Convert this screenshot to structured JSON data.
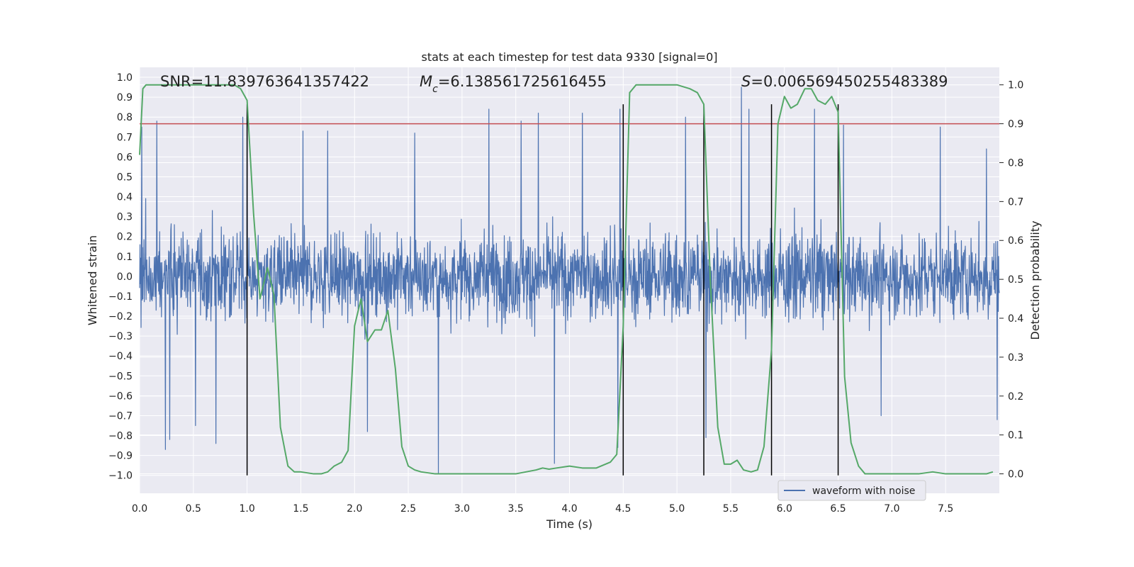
{
  "chart_data": {
    "type": "line",
    "title": "stats at each timestep for test data 9330 [signal=0]",
    "xlabel": "Time (s)",
    "ylabel_left": "Whitened strain",
    "ylabel_right": "Detection probability",
    "xlim": [
      0.0,
      8.0
    ],
    "ylim_left": [
      -1.09,
      1.05
    ],
    "ylim_right": [
      -0.05,
      1.045
    ],
    "x_ticks": [
      "0.0",
      "0.5",
      "1.0",
      "1.5",
      "2.0",
      "2.5",
      "3.0",
      "3.5",
      "4.0",
      "4.5",
      "5.0",
      "5.5",
      "6.0",
      "6.5",
      "7.0",
      "7.5"
    ],
    "y_ticks_left": [
      "1.0",
      "0.9",
      "0.8",
      "0.7",
      "0.6",
      "0.5",
      "0.4",
      "0.3",
      "0.2",
      "0.1",
      "0.0",
      "-0.1",
      "-0.2",
      "-0.3",
      "-0.4",
      "-0.5",
      "-0.6",
      "-0.7",
      "-0.8",
      "-0.9",
      "-1.0"
    ],
    "y_ticks_right": [
      "1.0",
      "0.9",
      "0.8",
      "0.7",
      "0.6",
      "0.5",
      "0.4",
      "0.3",
      "0.2",
      "0.1",
      "0.0"
    ],
    "threshold": 0.9,
    "vlines": [
      1.0,
      4.5,
      5.25,
      5.88,
      6.5
    ],
    "vline_ymin": -1.0,
    "vline_ymax": 0.95,
    "annotations": {
      "snr": "SNR=11.839763641357422",
      "mc_symbol": "M",
      "mc_sub": "c",
      "mc_value": "=6.138561725616455",
      "s_symbol": "S",
      "s_value": "=0.006569450255483389"
    },
    "legend": {
      "label": "waveform with noise",
      "position": "lower-right"
    },
    "series": [
      {
        "name": "waveform with noise",
        "axis": "left",
        "style": "noise-band",
        "typical_amplitude": 0.45,
        "max_amplitude": 1.0,
        "spikes": [
          {
            "x": 0.02,
            "v": 0.75
          },
          {
            "x": 0.16,
            "v": 0.78
          },
          {
            "x": 0.24,
            "v": -0.87
          },
          {
            "x": 0.28,
            "v": -0.82
          },
          {
            "x": 0.52,
            "v": -0.75
          },
          {
            "x": 0.71,
            "v": -0.84
          },
          {
            "x": 0.96,
            "v": 0.8
          },
          {
            "x": 1.0,
            "v": 0.79
          },
          {
            "x": 1.52,
            "v": 0.73
          },
          {
            "x": 1.75,
            "v": 0.73
          },
          {
            "x": 2.12,
            "v": -0.78
          },
          {
            "x": 2.13,
            "v": -0.2
          },
          {
            "x": 2.56,
            "v": 0.72
          },
          {
            "x": 2.78,
            "v": -0.99
          },
          {
            "x": 3.25,
            "v": 0.84
          },
          {
            "x": 3.55,
            "v": 0.78
          },
          {
            "x": 3.71,
            "v": 0.82
          },
          {
            "x": 3.86,
            "v": -0.94
          },
          {
            "x": 4.12,
            "v": 0.82
          },
          {
            "x": 4.45,
            "v": -0.86
          },
          {
            "x": 4.47,
            "v": 0.84
          },
          {
            "x": 5.08,
            "v": 0.8
          },
          {
            "x": 5.27,
            "v": -0.81
          },
          {
            "x": 5.6,
            "v": 0.95
          },
          {
            "x": 5.67,
            "v": 0.84
          },
          {
            "x": 6.28,
            "v": 0.84
          },
          {
            "x": 6.55,
            "v": 0.76
          },
          {
            "x": 6.9,
            "v": -0.7
          },
          {
            "x": 7.45,
            "v": 0.75
          },
          {
            "x": 7.88,
            "v": 0.64
          },
          {
            "x": 7.98,
            "v": -0.72
          }
        ]
      },
      {
        "name": "detection probability",
        "axis": "right",
        "x": [
          0.0,
          0.03,
          0.06,
          0.12,
          0.19,
          0.25,
          0.5,
          0.75,
          0.88,
          0.94,
          1.0,
          1.06,
          1.12,
          1.19,
          1.25,
          1.31,
          1.38,
          1.44,
          1.5,
          1.62,
          1.69,
          1.75,
          1.81,
          1.88,
          1.94,
          2.0,
          2.06,
          2.12,
          2.19,
          2.25,
          2.31,
          2.38,
          2.44,
          2.5,
          2.56,
          2.62,
          2.75,
          3.0,
          3.25,
          3.5,
          3.69,
          3.75,
          3.81,
          3.88,
          4.0,
          4.12,
          4.25,
          4.38,
          4.44,
          4.5,
          4.56,
          4.62,
          4.69,
          5.0,
          5.12,
          5.19,
          5.25,
          5.31,
          5.38,
          5.44,
          5.5,
          5.56,
          5.62,
          5.69,
          5.75,
          5.81,
          5.88,
          5.94,
          6.0,
          6.06,
          6.12,
          6.19,
          6.25,
          6.31,
          6.38,
          6.44,
          6.5,
          6.56,
          6.62,
          6.69,
          6.75,
          6.81,
          6.88,
          7.0,
          7.12,
          7.25,
          7.38,
          7.5,
          7.62,
          7.75,
          7.88,
          7.94
        ],
        "y": [
          0.82,
          0.99,
          1.0,
          1.0,
          1.0,
          1.0,
          1.0,
          1.0,
          1.0,
          0.99,
          0.96,
          0.67,
          0.45,
          0.53,
          0.46,
          0.12,
          0.02,
          0.005,
          0.005,
          0.0,
          0.0,
          0.005,
          0.02,
          0.03,
          0.06,
          0.38,
          0.45,
          0.34,
          0.37,
          0.37,
          0.42,
          0.27,
          0.07,
          0.02,
          0.01,
          0.005,
          0.0,
          0.0,
          0.0,
          0.0,
          0.01,
          0.015,
          0.012,
          0.015,
          0.02,
          0.015,
          0.015,
          0.03,
          0.05,
          0.38,
          0.98,
          1.0,
          1.0,
          1.0,
          0.99,
          0.98,
          0.95,
          0.5,
          0.12,
          0.025,
          0.025,
          0.035,
          0.01,
          0.005,
          0.01,
          0.07,
          0.32,
          0.9,
          0.97,
          0.94,
          0.95,
          0.99,
          0.99,
          0.96,
          0.95,
          0.97,
          0.93,
          0.25,
          0.08,
          0.02,
          0.0,
          0.0,
          0.0,
          0.0,
          0.0,
          0.0,
          0.005,
          0.0,
          0.0,
          0.0,
          0.0,
          0.005
        ]
      }
    ]
  }
}
